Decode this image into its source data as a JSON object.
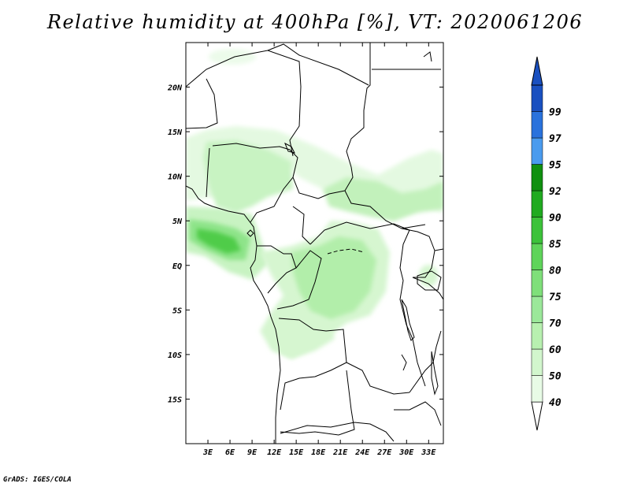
{
  "title": "Relative humidity at 400hPa [%], VT: 2020061206",
  "credit": "GrADS: IGES/COLA",
  "map": {
    "lon_range": [
      0,
      35
    ],
    "lat_range": [
      -20,
      25
    ],
    "lat_ticks": [
      {
        "value": 20,
        "label": "20N"
      },
      {
        "value": 15,
        "label": "15N"
      },
      {
        "value": 10,
        "label": "10N"
      },
      {
        "value": 5,
        "label": "5N"
      },
      {
        "value": 0,
        "label": "EQ"
      },
      {
        "value": -5,
        "label": "5S"
      },
      {
        "value": -10,
        "label": "10S"
      },
      {
        "value": -15,
        "label": "15S"
      }
    ],
    "lon_ticks": [
      {
        "value": 3,
        "label": "3E"
      },
      {
        "value": 6,
        "label": "6E"
      },
      {
        "value": 9,
        "label": "9E"
      },
      {
        "value": 12,
        "label": "12E"
      },
      {
        "value": 15,
        "label": "15E"
      },
      {
        "value": 18,
        "label": "18E"
      },
      {
        "value": 21,
        "label": "21E"
      },
      {
        "value": 24,
        "label": "24E"
      },
      {
        "value": 27,
        "label": "27E"
      },
      {
        "value": 30,
        "label": "30E"
      },
      {
        "value": 33,
        "label": "33E"
      }
    ]
  },
  "colorbar": {
    "levels": [
      {
        "label": "40",
        "color": "#e8fbe6"
      },
      {
        "label": "50",
        "color": "#d2f6cd"
      },
      {
        "label": "60",
        "color": "#b8f0b0"
      },
      {
        "label": "70",
        "color": "#9be89a"
      },
      {
        "label": "75",
        "color": "#7fdf7a"
      },
      {
        "label": "80",
        "color": "#5fd45a"
      },
      {
        "label": "85",
        "color": "#3cc23a"
      },
      {
        "label": "90",
        "color": "#20aa20"
      },
      {
        "label": "92",
        "color": "#109010"
      },
      {
        "label": "95",
        "color": "#4a9bee"
      },
      {
        "label": "97",
        "color": "#2a72dc"
      },
      {
        "label": "99",
        "color": "#1a50c0"
      }
    ],
    "over_color": "#1a50c0",
    "under_color": "#ffffff"
  }
}
